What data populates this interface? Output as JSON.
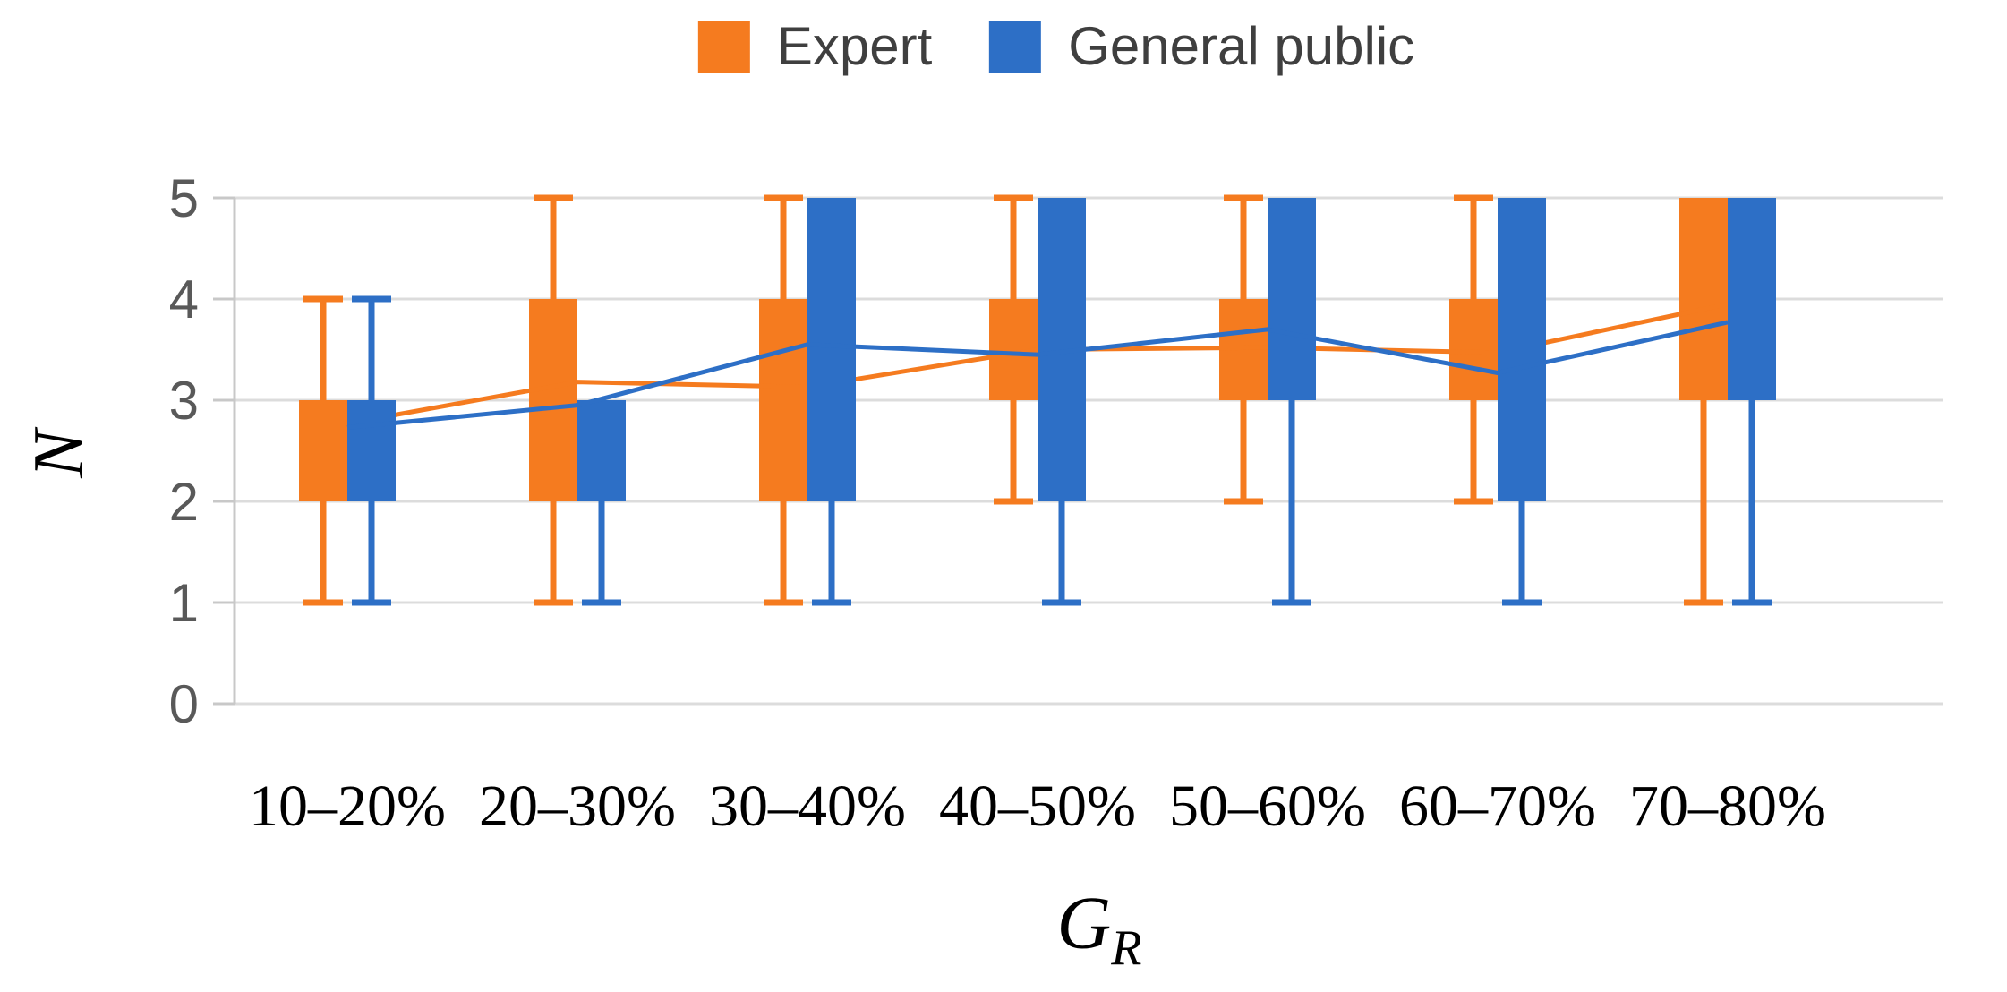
{
  "chart_data": {
    "type": "boxplot",
    "title": "",
    "ylabel": "N",
    "xlabel_base": "G",
    "xlabel_sub": "R",
    "ylim": [
      0,
      5
    ],
    "yticks": [
      0,
      1,
      2,
      3,
      4,
      5
    ],
    "grid": true,
    "legend_position": "top-center",
    "categories": [
      "10–20%",
      "20–30%",
      "30–40%",
      "40–50%",
      "50–60%",
      "60–70%",
      "70–80%"
    ],
    "series": [
      {
        "name": "Expert",
        "color": "#F57B1F",
        "boxes": [
          {
            "whisker_low": 1,
            "box_low": 2,
            "box_high": 3,
            "whisker_high": 4
          },
          {
            "whisker_low": 1,
            "box_low": 2,
            "box_high": 4,
            "whisker_high": 5
          },
          {
            "whisker_low": 1,
            "box_low": 2,
            "box_high": 4,
            "whisker_high": 5
          },
          {
            "whisker_low": 2,
            "box_low": 3,
            "box_high": 4,
            "whisker_high": 5
          },
          {
            "whisker_low": 2,
            "box_low": 3,
            "box_high": 4,
            "whisker_high": 5
          },
          {
            "whisker_low": 2,
            "box_low": 3,
            "box_high": 4,
            "whisker_high": 5
          },
          {
            "whisker_low": 1,
            "box_low": 3,
            "box_high": 5,
            "whisker_high": 5
          }
        ],
        "mean_line": [
          2.77,
          3.18,
          3.13,
          3.5,
          3.52,
          3.47,
          3.95
        ]
      },
      {
        "name": "General public",
        "color": "#2D6FC6",
        "boxes": [
          {
            "whisker_low": 1,
            "box_low": 2,
            "box_high": 3,
            "whisker_high": 4
          },
          {
            "whisker_low": 1,
            "box_low": 2,
            "box_high": 3,
            "whisker_high": 3
          },
          {
            "whisker_low": 1,
            "box_low": 2,
            "box_high": 5,
            "whisker_high": 5
          },
          {
            "whisker_low": 1,
            "box_low": 2,
            "box_high": 5,
            "whisker_high": 5
          },
          {
            "whisker_low": 1,
            "box_low": 3,
            "box_high": 5,
            "whisker_high": 5
          },
          {
            "whisker_low": 1,
            "box_low": 2,
            "box_high": 5,
            "whisker_high": 5
          },
          {
            "whisker_low": 1,
            "box_low": 3,
            "box_high": 5,
            "whisker_high": 5
          }
        ],
        "mean_line": [
          2.73,
          2.95,
          3.55,
          3.45,
          3.7,
          3.27,
          3.77
        ]
      }
    ]
  }
}
